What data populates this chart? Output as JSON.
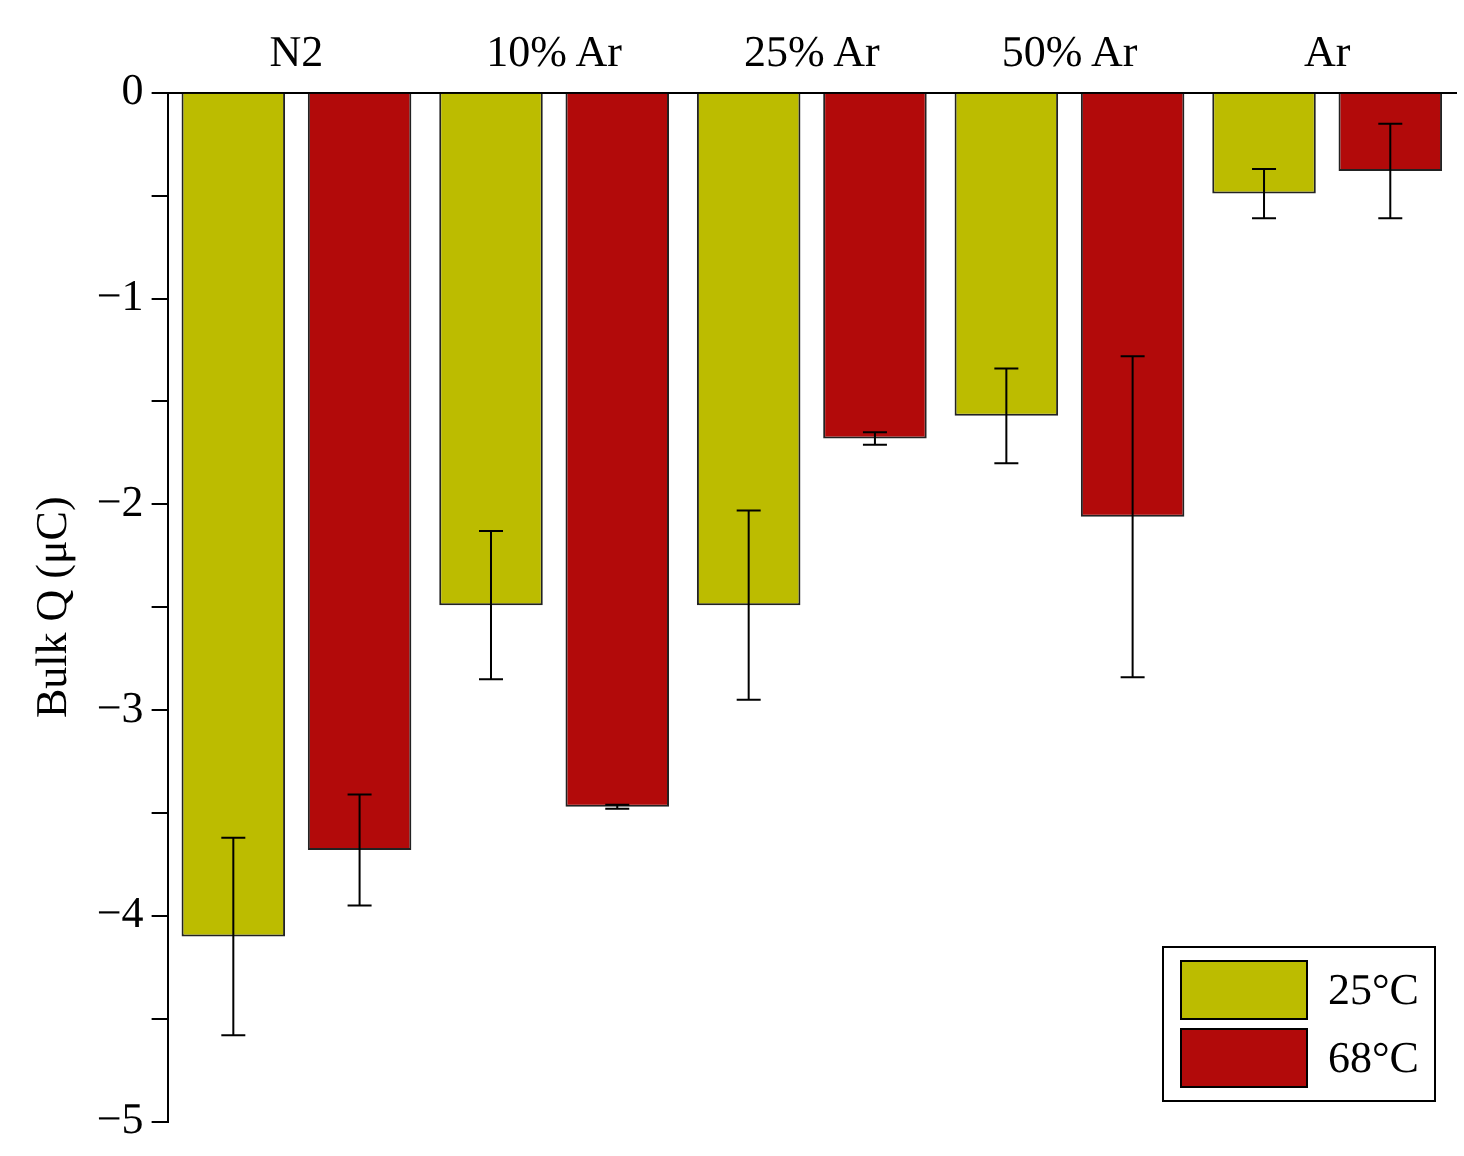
{
  "chart_data": {
    "type": "bar",
    "ylabel": "Bulk Q (μC)",
    "categories": [
      "N2",
      "10% Ar",
      "25% Ar",
      "50% Ar",
      "Ar"
    ],
    "series": [
      {
        "name": "25°C",
        "color": "#bcbc00",
        "values": [
          -4.1,
          -2.49,
          -2.49,
          -1.57,
          -0.49
        ],
        "errors": [
          0.48,
          0.36,
          0.46,
          0.23,
          0.12
        ]
      },
      {
        "name": "68°C",
        "color": "#b20a0a",
        "values": [
          -3.68,
          -3.47,
          -1.68,
          -2.06,
          -0.38
        ],
        "errors": [
          0.27,
          0.01,
          0.03,
          0.78,
          0.23
        ]
      }
    ],
    "ylim": [
      -5,
      0
    ],
    "yticks": [
      {
        "value": -5,
        "label": "−5"
      },
      {
        "value": -4.5,
        "label": null
      },
      {
        "value": -4,
        "label": "−4"
      },
      {
        "value": -3.5,
        "label": null
      },
      {
        "value": -3,
        "label": "−3"
      },
      {
        "value": -2.5,
        "label": null
      },
      {
        "value": -2,
        "label": "−2"
      },
      {
        "value": -1.5,
        "label": null
      },
      {
        "value": -1,
        "label": "−1"
      },
      {
        "value": -0.5,
        "label": null
      },
      {
        "value": 0,
        "label": "0"
      }
    ],
    "grid": false,
    "legend": "bottom right"
  }
}
